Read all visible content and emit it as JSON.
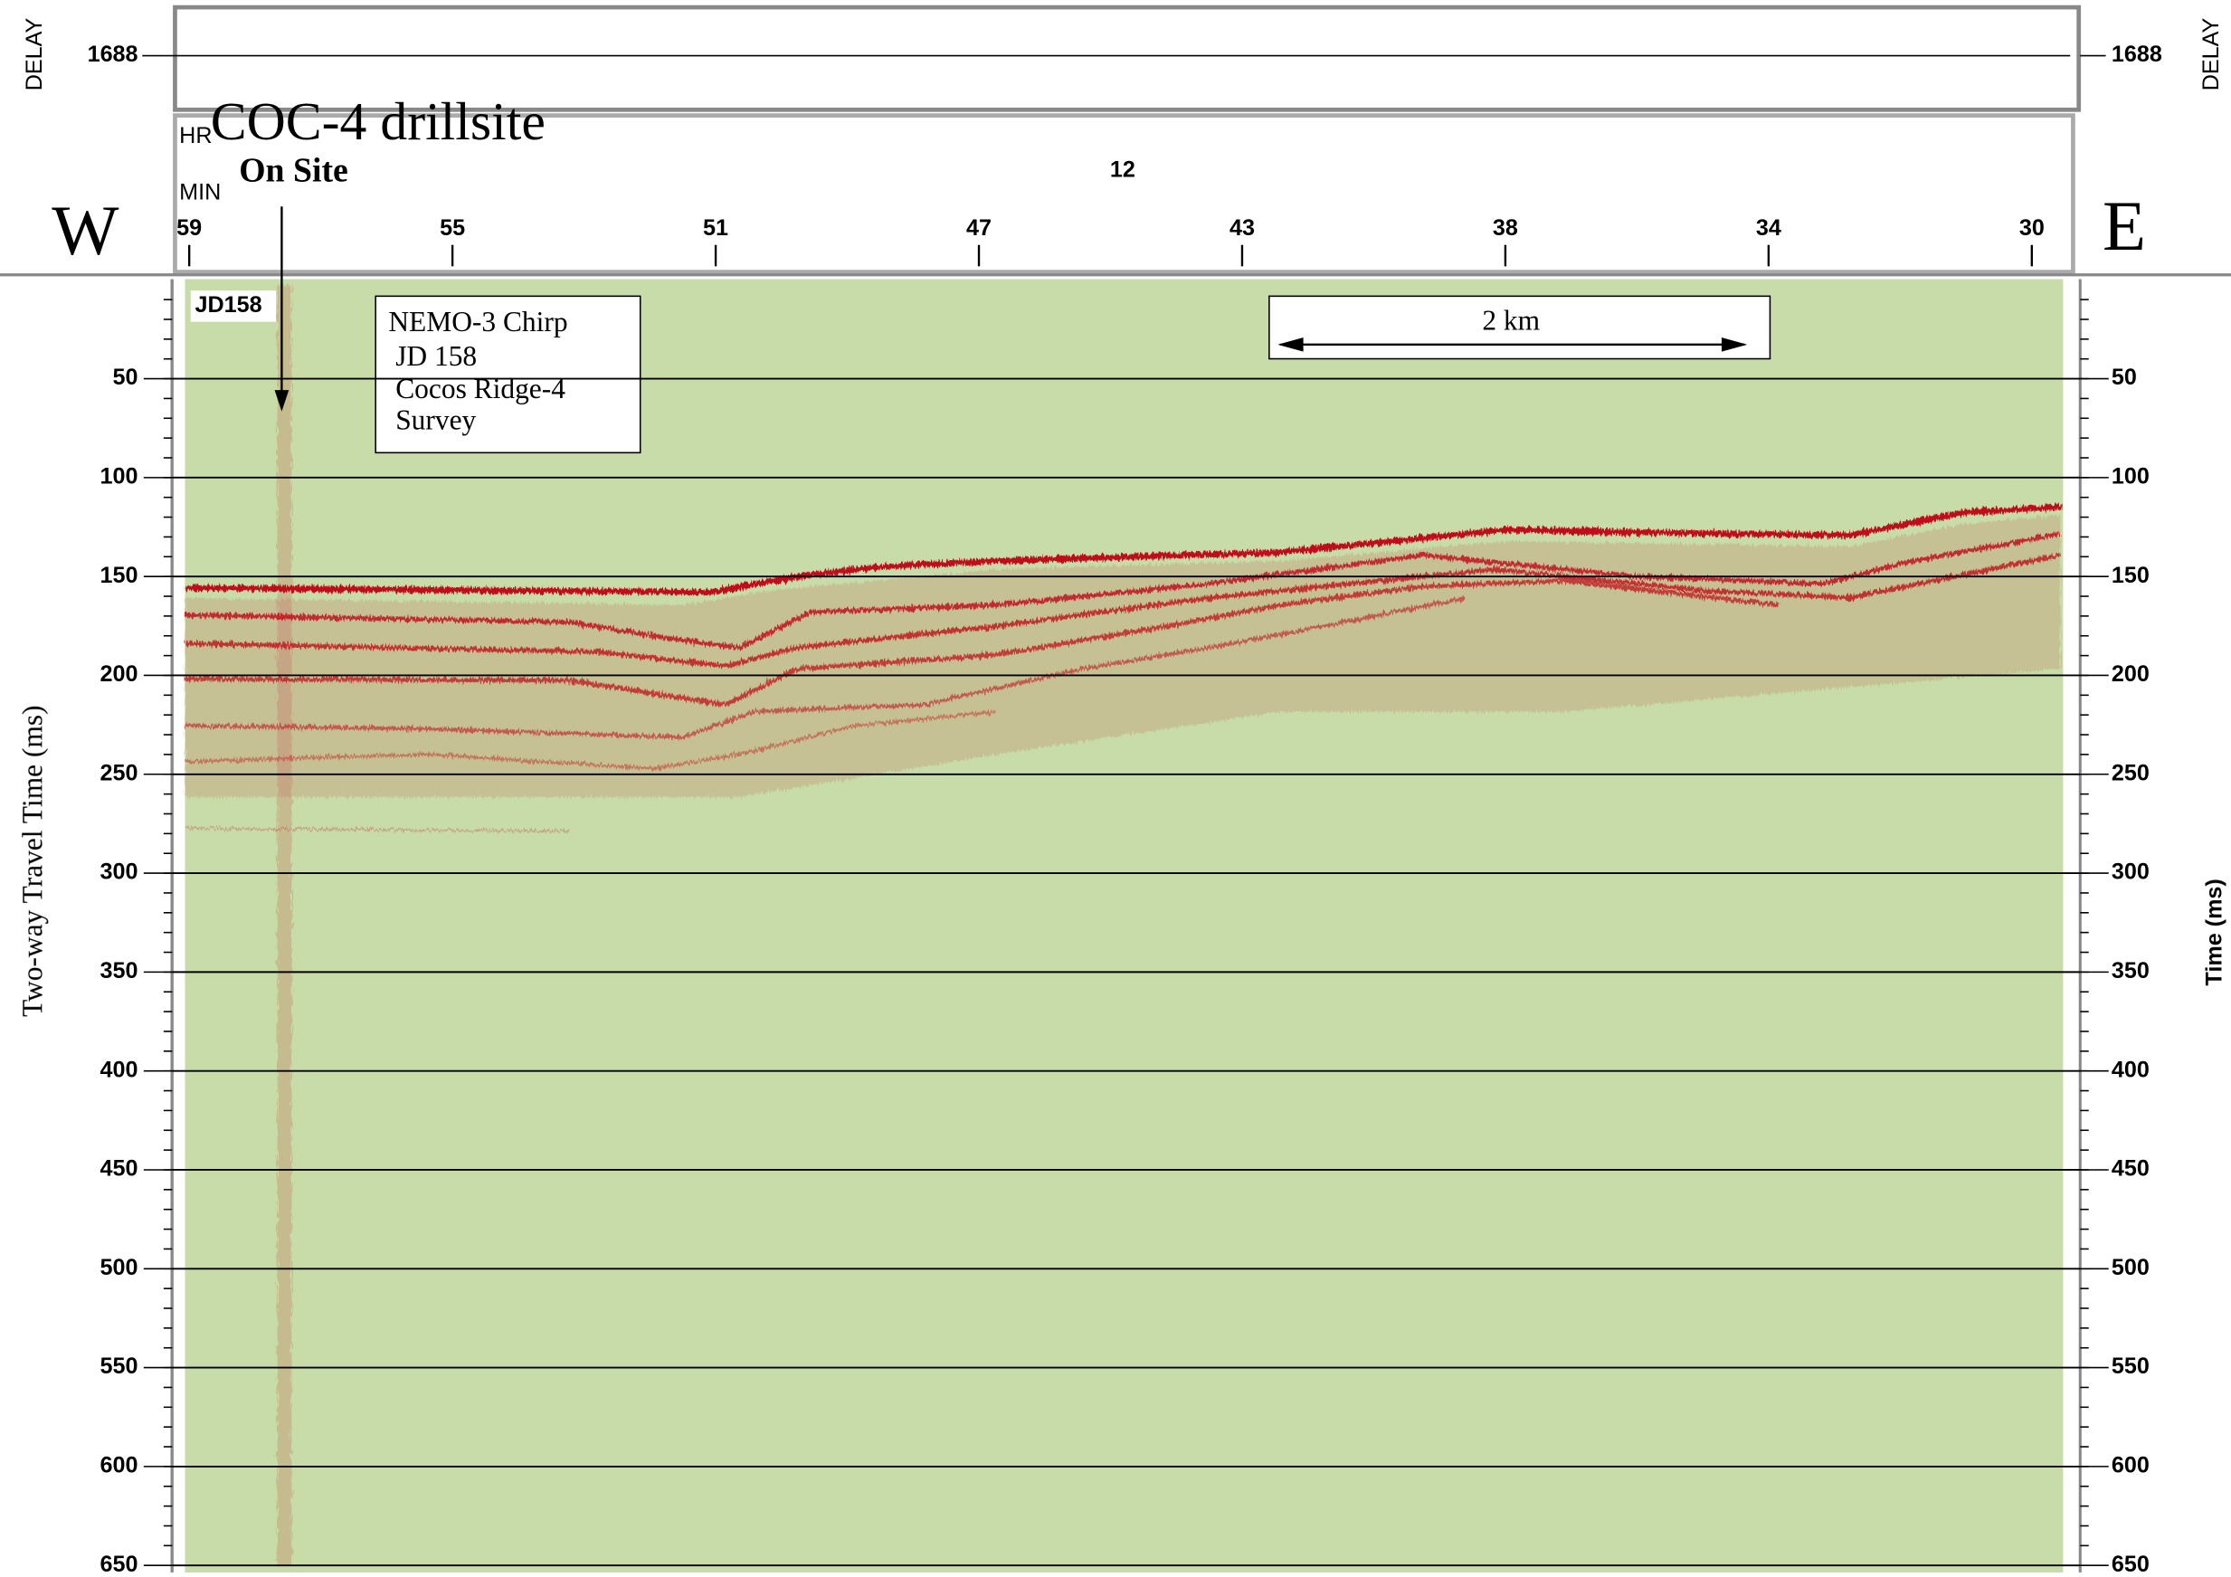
{
  "chart_data": {
    "type": "seismic-profile",
    "title": "COC-4 drillsite",
    "subtitle": "On Site",
    "side_labels": {
      "left": "W",
      "right": "E"
    },
    "delay": {
      "label": "DELAY",
      "value": 1688
    },
    "time_axis": {
      "hour_label": "HR",
      "minute_label": "MIN",
      "hour": 12,
      "minutes": [
        59,
        55,
        51,
        47,
        43,
        38,
        34,
        30
      ]
    },
    "panel_label": "JD158",
    "info_box": [
      "NEMO-3 Chirp",
      "JD 158",
      "Cocos Ridge-4",
      "Survey"
    ],
    "scale_bar": "2 km",
    "y_label": "Two-way Travel Time (ms)",
    "y2_label": "Time (ms)",
    "ylim": [
      0,
      650
    ],
    "yticks": [
      50,
      100,
      150,
      200,
      250,
      300,
      350,
      400,
      450,
      500,
      550,
      600,
      650
    ],
    "yminor": 10,
    "grid": true,
    "colors": {
      "background": "#c7dca9",
      "reflector": "#c0101c"
    }
  }
}
